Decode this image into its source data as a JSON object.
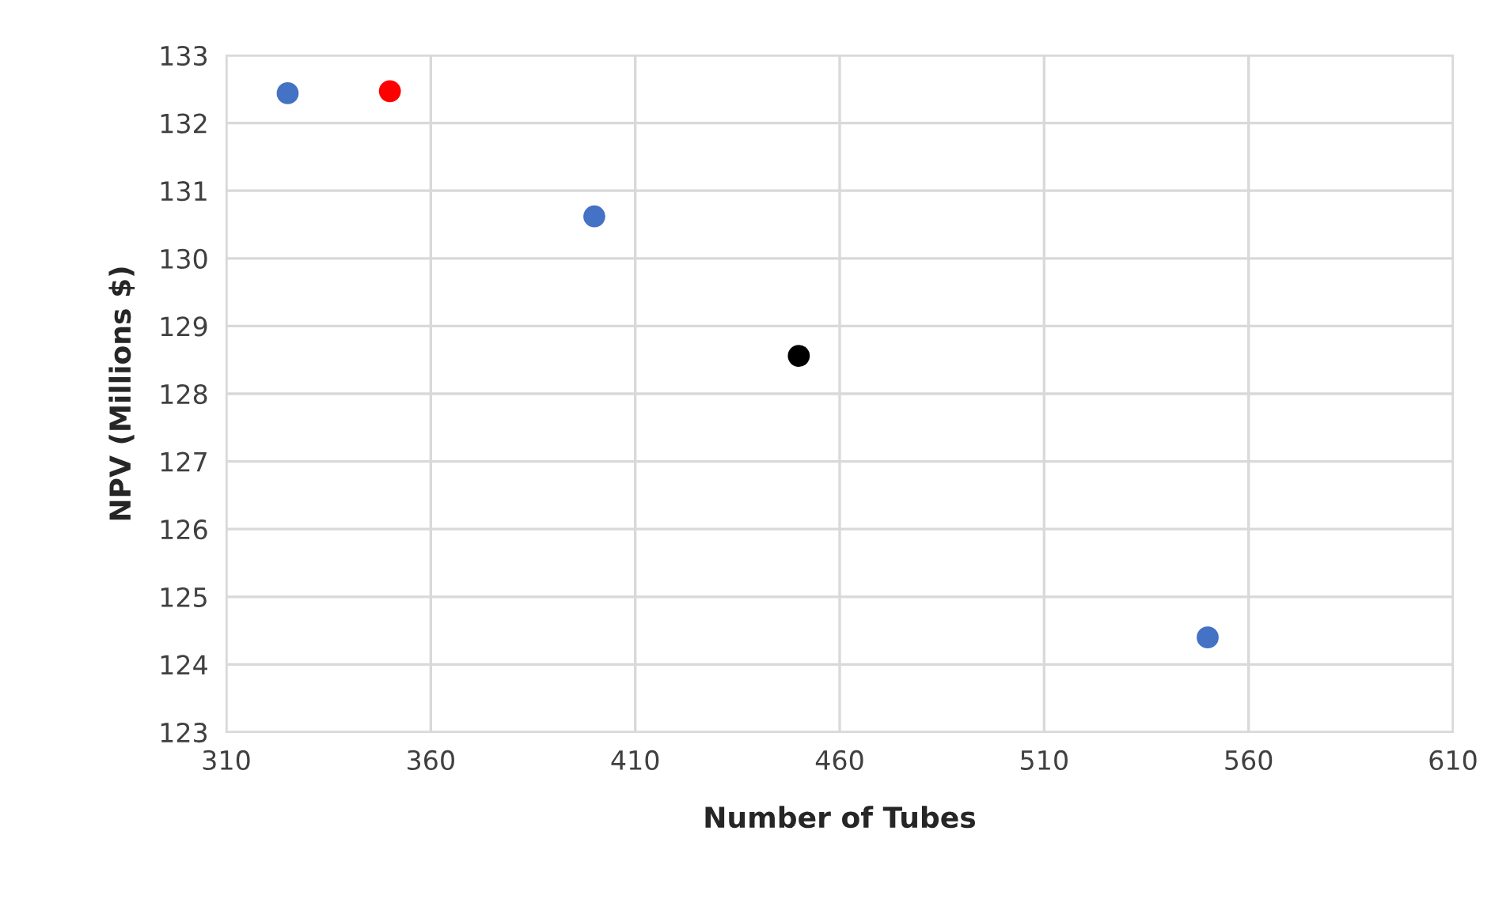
{
  "chart_data": {
    "type": "scatter",
    "xlabel": "Number of Tubes",
    "ylabel": "NPV (Millions $)",
    "x": [
      325,
      350,
      400,
      450,
      550
    ],
    "series": [
      {
        "values": [
          132.44,
          132.47,
          130.62,
          128.56,
          124.4
        ],
        "colors": [
          "#4472c4",
          "#ff0000",
          "#4472c4",
          "#000000",
          "#4472c4"
        ]
      }
    ],
    "xlim": [
      310,
      610
    ],
    "xticks": [
      310,
      360,
      410,
      460,
      510,
      560,
      610
    ],
    "ylim": [
      123,
      133
    ],
    "yticks": [
      123,
      124,
      125,
      126,
      127,
      128,
      129,
      130,
      131,
      132,
      133
    ],
    "grid": true,
    "marker": "circle"
  }
}
